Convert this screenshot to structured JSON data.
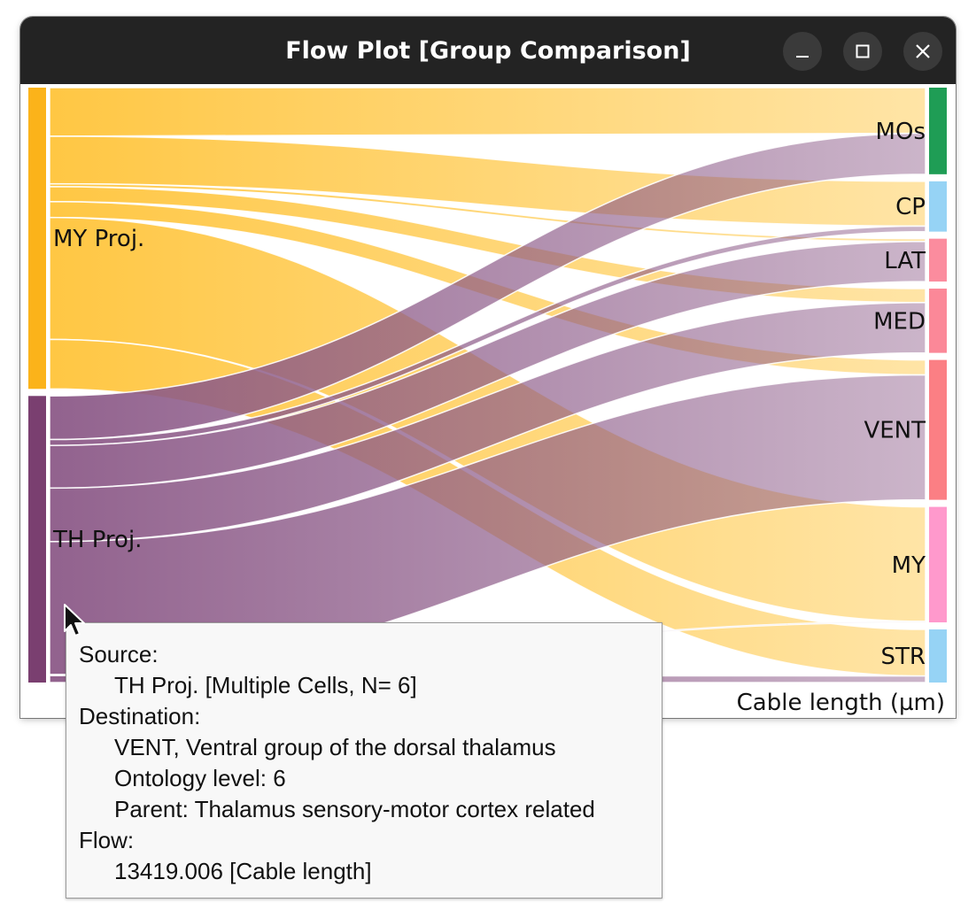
{
  "window": {
    "title": "Flow Plot [Group Comparison]",
    "controls": [
      "minimize",
      "maximize",
      "close"
    ]
  },
  "chart_data": {
    "type": "sankey",
    "title": "",
    "quantity_label": "Cable length (µm)",
    "sources": [
      {
        "name": "MY Proj.",
        "color": "#fbb31a",
        "flow_color": "#ffc43a"
      },
      {
        "name": "TH Proj.",
        "color": "#7a3f70",
        "flow_color": "#8c5a88"
      }
    ],
    "targets": [
      {
        "name": "MOs",
        "color": "#1f9d55"
      },
      {
        "name": "CP",
        "color": "#96d3f5"
      },
      {
        "name": "LAT",
        "color": "#fb8c9e"
      },
      {
        "name": "MED",
        "color": "#fb8898"
      },
      {
        "name": "VENT",
        "color": "#fb7f84"
      },
      {
        "name": "MY",
        "color": "#ff99cc"
      },
      {
        "name": "STR",
        "color": "#96d3f5"
      }
    ],
    "flows": [
      {
        "source": "MY Proj.",
        "target": "MOs",
        "value": 4900
      },
      {
        "source": "MY Proj.",
        "target": "CP",
        "value": 4800
      },
      {
        "source": "MY Proj.",
        "target": "LAT",
        "value": 300
      },
      {
        "source": "MY Proj.",
        "target": "MED",
        "value": 1500
      },
      {
        "source": "MY Proj.",
        "target": "VENT",
        "value": 1600
      },
      {
        "source": "MY Proj.",
        "target": "MY",
        "value": 12300
      },
      {
        "source": "MY Proj.",
        "target": "STR",
        "value": 5000
      },
      {
        "source": "TH Proj.",
        "target": "MOs",
        "value": 4400
      },
      {
        "source": "TH Proj.",
        "target": "CP",
        "value": 600
      },
      {
        "source": "TH Proj.",
        "target": "LAT",
        "value": 4300
      },
      {
        "source": "TH Proj.",
        "target": "MED",
        "value": 5400
      },
      {
        "source": "TH Proj.",
        "target": "VENT",
        "value": 13419.006
      },
      {
        "source": "TH Proj.",
        "target": "MY",
        "value": 100
      },
      {
        "source": "TH Proj.",
        "target": "STR",
        "value": 700
      }
    ]
  },
  "tooltip": {
    "source_heading": "Source:",
    "source_value": "TH Proj. [Multiple Cells, N= 6]",
    "destination_heading": "Destination:",
    "destination_name": "VENT, Ventral group of the dorsal thalamus",
    "ontology_level": "Ontology level: 6",
    "parent": "Parent: Thalamus sensory-motor cortex related",
    "flow_heading": "Flow:",
    "flow_value": "13419.006 [Cable length]"
  }
}
